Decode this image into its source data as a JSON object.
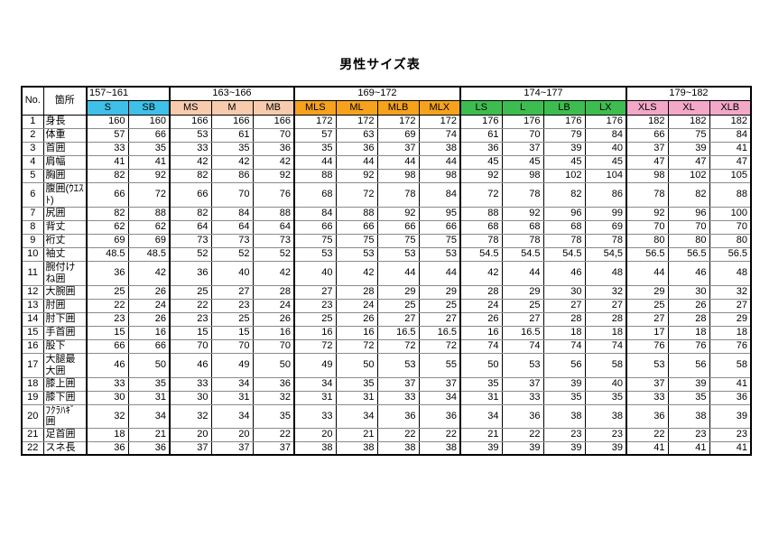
{
  "title": "男性サイズ表",
  "table": {
    "no_header": "No.",
    "part_header": "箇所",
    "groups": [
      {
        "range": "157~161",
        "color": "#3FC0E8",
        "align": "left",
        "sizes": [
          "S",
          "SB"
        ]
      },
      {
        "range": "163~166",
        "color": "#F8CBAD",
        "align": "center",
        "sizes": [
          "MS",
          "M",
          "MB"
        ]
      },
      {
        "range": "169~172",
        "color": "#F6A21C",
        "align": "center",
        "sizes": [
          "MLS",
          "ML",
          "MLB",
          "MLX"
        ]
      },
      {
        "range": "174~177",
        "color": "#3DBD4F",
        "align": "center",
        "sizes": [
          "LS",
          "L",
          "LB",
          "LX"
        ]
      },
      {
        "range": "179~182",
        "color": "#F3A8C8",
        "align": "center",
        "sizes": [
          "XLS",
          "XL",
          "XLB"
        ]
      }
    ],
    "rows": [
      {
        "no": 1,
        "label": "身長",
        "tall": false,
        "values": [
          160,
          160,
          166,
          166,
          166,
          172,
          172,
          172,
          172,
          176,
          176,
          176,
          176,
          182,
          182,
          182
        ]
      },
      {
        "no": 2,
        "label": "体重",
        "tall": false,
        "values": [
          57,
          66,
          53,
          61,
          70,
          57,
          63,
          69,
          74,
          61,
          70,
          79,
          84,
          66,
          75,
          84
        ]
      },
      {
        "no": 3,
        "label": "首囲",
        "tall": false,
        "values": [
          33,
          35,
          33,
          35,
          36,
          35,
          36,
          37,
          38,
          36,
          37,
          39,
          40,
          37,
          39,
          41
        ]
      },
      {
        "no": 4,
        "label": "肩幅",
        "tall": false,
        "values": [
          41,
          41,
          42,
          42,
          42,
          44,
          44,
          44,
          44,
          45,
          45,
          45,
          45,
          47,
          47,
          47
        ]
      },
      {
        "no": 5,
        "label": "胸囲",
        "tall": false,
        "values": [
          82,
          92,
          82,
          86,
          92,
          88,
          92,
          98,
          98,
          92,
          98,
          102,
          104,
          98,
          102,
          105
        ]
      },
      {
        "no": 6,
        "label": "腹囲(ｳｴｽﾄ)",
        "tall": true,
        "values": [
          66,
          72,
          66,
          70,
          76,
          68,
          72,
          78,
          84,
          72,
          78,
          82,
          86,
          78,
          82,
          88
        ]
      },
      {
        "no": 7,
        "label": "尻囲",
        "tall": false,
        "values": [
          82,
          88,
          82,
          84,
          88,
          84,
          88,
          92,
          95,
          88,
          92,
          96,
          99,
          92,
          96,
          100
        ]
      },
      {
        "no": 8,
        "label": "背丈",
        "tall": false,
        "values": [
          62,
          62,
          64,
          64,
          64,
          66,
          66,
          66,
          66,
          68,
          68,
          68,
          69,
          70,
          70,
          70
        ]
      },
      {
        "no": 9,
        "label": "裄丈",
        "tall": false,
        "values": [
          69,
          69,
          73,
          73,
          73,
          75,
          75,
          75,
          75,
          78,
          78,
          78,
          78,
          80,
          80,
          80
        ]
      },
      {
        "no": 10,
        "label": "袖丈",
        "tall": false,
        "values": [
          48.5,
          48.5,
          52,
          52,
          52,
          53,
          53,
          53,
          53,
          54.5,
          54.5,
          54.5,
          "54,5",
          56.5,
          56.5,
          56.5
        ]
      },
      {
        "no": 11,
        "label": "腕付けね囲",
        "tall": true,
        "values": [
          36,
          42,
          36,
          40,
          42,
          40,
          42,
          44,
          44,
          42,
          44,
          46,
          48,
          44,
          46,
          48
        ]
      },
      {
        "no": 12,
        "label": "大腕囲",
        "tall": false,
        "values": [
          25,
          26,
          25,
          27,
          28,
          27,
          28,
          29,
          29,
          28,
          29,
          30,
          32,
          29,
          30,
          32
        ]
      },
      {
        "no": 13,
        "label": "肘囲",
        "tall": false,
        "values": [
          22,
          24,
          22,
          23,
          24,
          23,
          24,
          25,
          25,
          24,
          25,
          27,
          27,
          25,
          26,
          27
        ]
      },
      {
        "no": 14,
        "label": "肘下囲",
        "tall": false,
        "values": [
          23,
          26,
          23,
          25,
          26,
          25,
          26,
          27,
          27,
          26,
          27,
          28,
          28,
          27,
          28,
          29
        ]
      },
      {
        "no": 15,
        "label": "手首囲",
        "tall": false,
        "values": [
          15,
          16,
          15,
          15,
          16,
          16,
          16,
          16.5,
          16.5,
          16,
          16.5,
          18,
          18,
          17,
          18,
          18
        ]
      },
      {
        "no": 16,
        "label": "股下",
        "tall": false,
        "values": [
          66,
          66,
          70,
          70,
          70,
          72,
          72,
          72,
          72,
          74,
          74,
          74,
          74,
          76,
          76,
          76
        ]
      },
      {
        "no": 17,
        "label": "大腿最大囲",
        "tall": true,
        "values": [
          46,
          50,
          46,
          49,
          50,
          49,
          50,
          53,
          55,
          50,
          53,
          56,
          58,
          53,
          56,
          58
        ]
      },
      {
        "no": 18,
        "label": "膝上囲",
        "tall": false,
        "values": [
          33,
          35,
          33,
          34,
          36,
          34,
          35,
          37,
          37,
          35,
          37,
          39,
          40,
          37,
          39,
          41
        ]
      },
      {
        "no": 19,
        "label": "膝下囲",
        "tall": false,
        "values": [
          30,
          31,
          30,
          31,
          32,
          31,
          31,
          33,
          34,
          31,
          33,
          35,
          35,
          33,
          35,
          36
        ]
      },
      {
        "no": 20,
        "label": "ﾌｸﾗﾊｷﾞ囲",
        "tall": false,
        "values": [
          32,
          34,
          32,
          34,
          35,
          33,
          34,
          36,
          36,
          34,
          36,
          38,
          38,
          36,
          38,
          39
        ]
      },
      {
        "no": 21,
        "label": "足首囲",
        "tall": false,
        "values": [
          18,
          21,
          20,
          20,
          22,
          20,
          21,
          22,
          22,
          21,
          22,
          23,
          23,
          22,
          23,
          23
        ]
      },
      {
        "no": 22,
        "label": "スネ長",
        "tall": false,
        "values": [
          36,
          36,
          37,
          37,
          37,
          38,
          38,
          38,
          38,
          39,
          39,
          39,
          39,
          41,
          41,
          41
        ]
      }
    ]
  }
}
